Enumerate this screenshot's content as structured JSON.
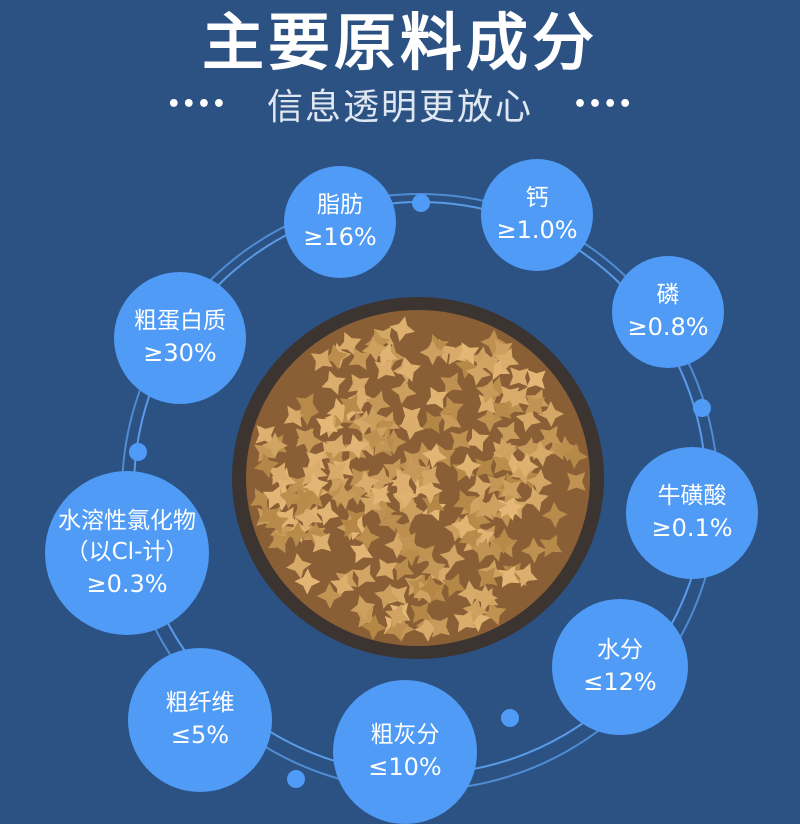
{
  "header": {
    "title": "主要原料成分",
    "subtitle": "信息透明更放心",
    "left_dots": "••••",
    "right_dots": "••••"
  },
  "colors": {
    "background": "#2c5283",
    "bubble": "#4f9bf5",
    "ring": "#5a9be8",
    "bowl": "#3b3430",
    "kibble": "#b8834a"
  },
  "ingredients": [
    {
      "name": "脂肪",
      "value": "≥16%"
    },
    {
      "name": "钙",
      "value": "≥1.0%"
    },
    {
      "name": "磷",
      "value": "≥0.8%"
    },
    {
      "name": "粗蛋白质",
      "value": "≥30%"
    },
    {
      "name": "牛磺酸",
      "value": "≥0.1%"
    },
    {
      "name": "水溶性氯化物",
      "note": "（以Cl-计）",
      "value": "≥0.3%"
    },
    {
      "name": "水分",
      "value": "≤12%"
    },
    {
      "name": "粗纤维",
      "value": "≤5%"
    },
    {
      "name": "粗灰分",
      "value": "≤10%"
    }
  ]
}
